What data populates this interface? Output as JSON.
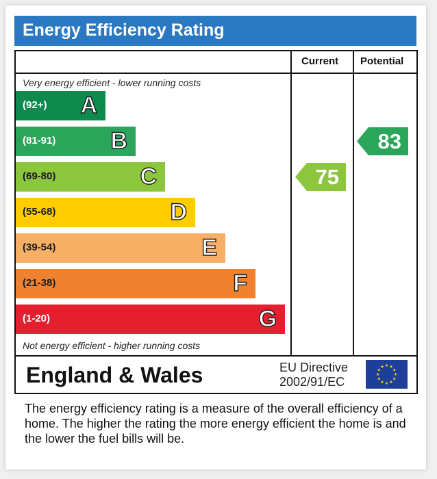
{
  "title": "Energy Efficiency Rating",
  "columns": {
    "current": "Current",
    "potential": "Potential"
  },
  "notes": {
    "top": "Very energy efficient - lower running costs",
    "bottom": "Not energy efficient - higher running costs"
  },
  "footer": {
    "country": "England & Wales",
    "directive_line1": "EU Directive",
    "directive_line2": "2002/91/EC"
  },
  "description": "The energy efficiency rating is a measure of the overall efficiency of a home.  The higher the rating the more energy efficient the home is and the lower the fuel bills will be.",
  "chart_data": {
    "type": "bar",
    "title": "Energy Efficiency Rating",
    "categories": [
      "A",
      "B",
      "C",
      "D",
      "E",
      "F",
      "G"
    ],
    "ranges": [
      "(92+)",
      "(81-91)",
      "(69-80)",
      "(55-68)",
      "(39-54)",
      "(21-38)",
      "(1-20)"
    ],
    "colors": [
      "#0f8a4f",
      "#2aa55a",
      "#8cc63f",
      "#ffcc00",
      "#f7ae65",
      "#ee8230",
      "#e42030"
    ],
    "range_text_colors": [
      "#ffffff",
      "#ffffff",
      "#1a1a1a",
      "#1a1a1a",
      "#1a1a1a",
      "#1a1a1a",
      "#ffffff"
    ],
    "current": {
      "label": "Current",
      "value": 75,
      "band": "C",
      "color": "#8cc63f"
    },
    "potential": {
      "label": "Potential",
      "value": 83,
      "band": "B",
      "color": "#2aa55a"
    }
  }
}
